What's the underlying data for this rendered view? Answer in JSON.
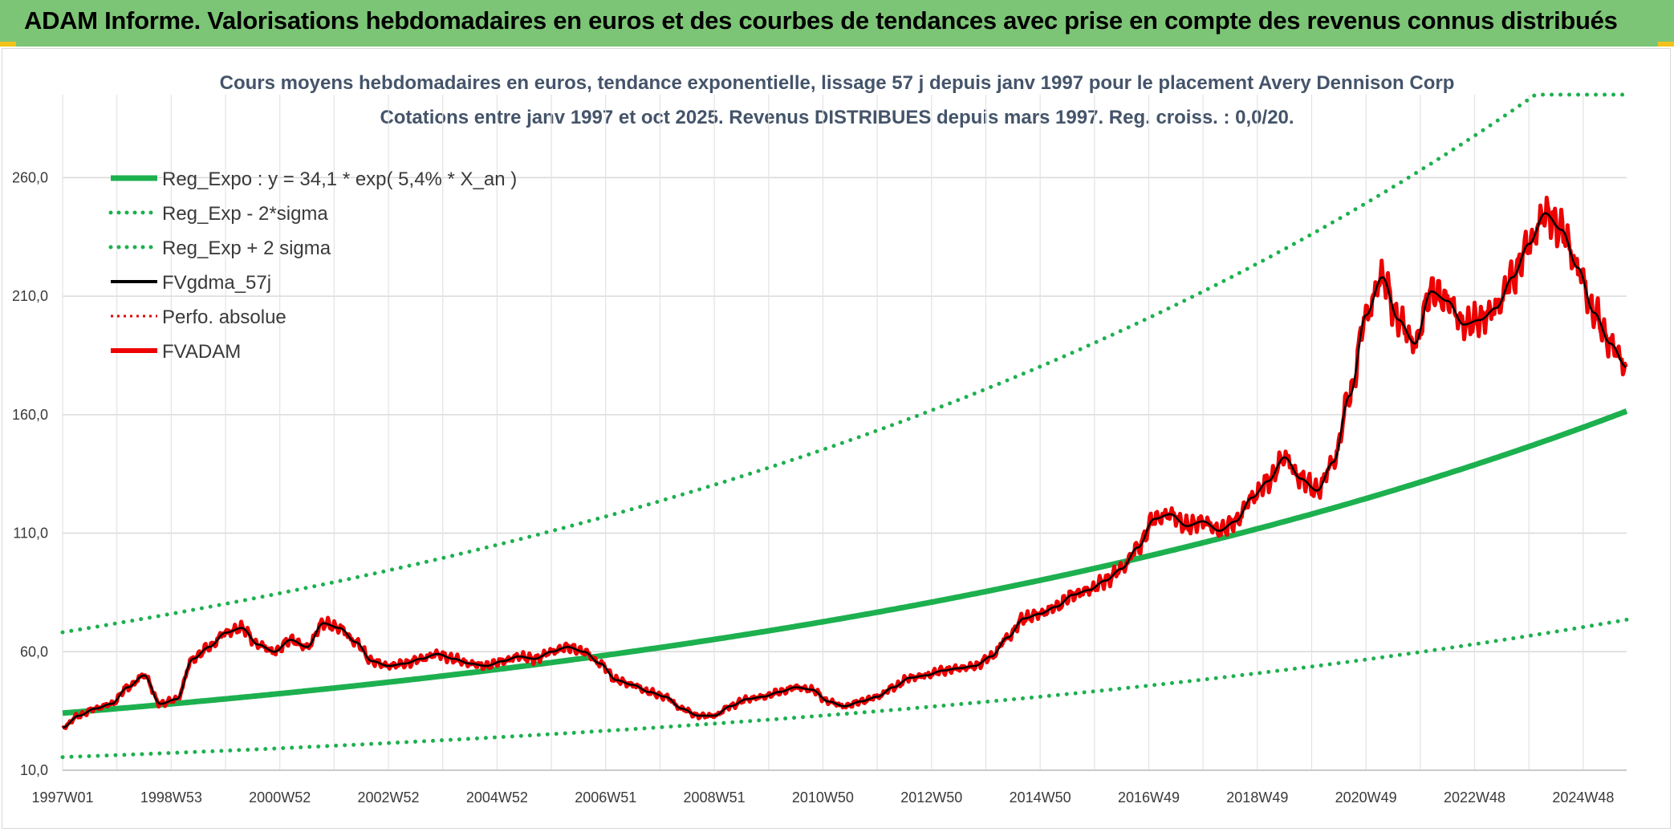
{
  "header": {
    "title": "ADAM Informe. Valorisations hebdomadaires en euros et des courbes de tendances avec prise en compte des revenus connus distribués"
  },
  "colors": {
    "banner": "#7cc576",
    "reg_expo": "#1db04f",
    "bands": "#1db04f",
    "fvgdma": "#000000",
    "perfo": "#e00000",
    "fvadam": "#ee0000",
    "title": "#44546a"
  },
  "chart_data": {
    "type": "line",
    "title": "Cours moyens hebdomadaires en euros, tendance exponentielle, lissage 57 j depuis janv 1997 pour le placement Avery Dennison Corp",
    "subtitle": "Cotations entre janv 1997 et oct 2025. Revenus DISTRIBUES depuis mars 1997. Reg. croiss. : 0,0/20.",
    "xlabel": "",
    "ylabel": "",
    "x_range": [
      1997.0,
      2025.8
    ],
    "ylim": [
      10,
      295
    ],
    "y_ticks": [
      10,
      60,
      110,
      160,
      210,
      260
    ],
    "y_tick_labels": [
      "10,0",
      "60,0",
      "110,0",
      "160,0",
      "210,0",
      "260,0"
    ],
    "x_ticks": [
      1997.0,
      1999.0,
      2001.0,
      2003.0,
      2005.0,
      2007.0,
      2009.0,
      2011.0,
      2013.0,
      2015.0,
      2017.0,
      2019.0,
      2021.0,
      2023.0,
      2025.0
    ],
    "x_tick_labels": [
      "1997W01",
      "1998W53",
      "2000W52",
      "2002W52",
      "2004W52",
      "2006W51",
      "2008W51",
      "2010W50",
      "2012W50",
      "2014W50",
      "2016W49",
      "2018W49",
      "2020W49",
      "2022W48",
      "2024W48"
    ],
    "grid": true,
    "legend_position": "top-left",
    "regression": {
      "a": 34.1,
      "rate_pct": 5.4,
      "upper_cap": 295
    },
    "series": [
      {
        "name": "Reg_Expo : y = 34,1 * exp( 5,4% *  X_an )",
        "style": "solid-thick",
        "color": "#1db04f"
      },
      {
        "name": "Reg_Exp - 2*sigma",
        "style": "dotted",
        "color": "#1db04f",
        "factor": 0.455
      },
      {
        "name": "Reg_Exp + 2 sigma",
        "style": "dotted",
        "color": "#1db04f",
        "factor": 2.0
      },
      {
        "name": "FVgdma_57j",
        "style": "solid",
        "color": "#000000"
      },
      {
        "name": "Perfo. absolue",
        "style": "dotted-thin",
        "color": "#e00000"
      },
      {
        "name": "FVADAM",
        "style": "solid-thick",
        "color": "#ee0000",
        "x": [
          1997.0,
          1997.3,
          1997.6,
          1997.9,
          1998.2,
          1998.5,
          1998.8,
          1999.1,
          1999.4,
          1999.7,
          2000.0,
          2000.3,
          2000.6,
          2000.9,
          2001.2,
          2001.5,
          2001.8,
          2002.1,
          2002.4,
          2002.7,
          2003.0,
          2003.3,
          2003.6,
          2003.9,
          2004.2,
          2004.5,
          2004.8,
          2005.1,
          2005.4,
          2005.7,
          2006.0,
          2006.3,
          2006.6,
          2006.9,
          2007.2,
          2007.5,
          2007.8,
          2008.1,
          2008.4,
          2008.7,
          2009.0,
          2009.3,
          2009.6,
          2009.9,
          2010.2,
          2010.5,
          2010.8,
          2011.1,
          2011.4,
          2011.7,
          2012.0,
          2012.3,
          2012.6,
          2012.9,
          2013.2,
          2013.5,
          2013.8,
          2014.1,
          2014.4,
          2014.7,
          2015.0,
          2015.3,
          2015.6,
          2015.9,
          2016.2,
          2016.5,
          2016.8,
          2017.1,
          2017.4,
          2017.7,
          2018.0,
          2018.3,
          2018.6,
          2018.9,
          2019.2,
          2019.5,
          2019.8,
          2020.1,
          2020.4,
          2020.7,
          2021.0,
          2021.3,
          2021.6,
          2021.9,
          2022.2,
          2022.5,
          2022.8,
          2023.1,
          2023.4,
          2023.7,
          2024.0,
          2024.3,
          2024.6,
          2024.9,
          2025.2,
          2025.5,
          2025.8
        ],
        "values": [
          28,
          33,
          36,
          38,
          45,
          50,
          38,
          40,
          57,
          62,
          68,
          70,
          63,
          60,
          65,
          62,
          72,
          70,
          64,
          56,
          54,
          55,
          57,
          59,
          57,
          55,
          54,
          56,
          58,
          57,
          60,
          62,
          60,
          55,
          48,
          46,
          43,
          41,
          36,
          33,
          33,
          37,
          40,
          41,
          43,
          45,
          44,
          39,
          37,
          39,
          41,
          45,
          49,
          50,
          52,
          53,
          54,
          58,
          66,
          74,
          76,
          79,
          84,
          86,
          90,
          95,
          104,
          116,
          118,
          113,
          115,
          111,
          115,
          125,
          132,
          142,
          133,
          128,
          140,
          168,
          202,
          218,
          200,
          190,
          212,
          208,
          198,
          200,
          205,
          218,
          232,
          245,
          238,
          222,
          203,
          190,
          180
        ]
      }
    ]
  }
}
